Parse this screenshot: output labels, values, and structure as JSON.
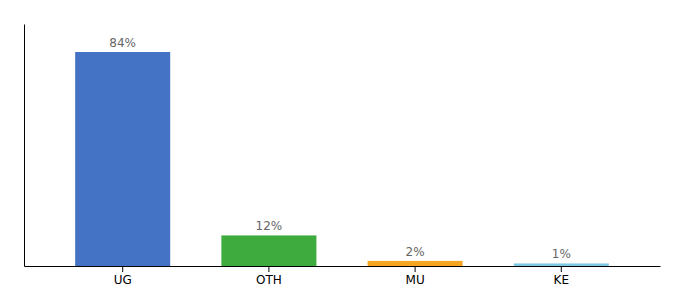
{
  "chart_data": {
    "type": "bar",
    "categories": [
      "UG",
      "OTH",
      "MU",
      "KE"
    ],
    "values": [
      84,
      12,
      2,
      1
    ],
    "value_labels": [
      "84%",
      "12%",
      "2%",
      "1%"
    ],
    "colors": [
      "#4472c4",
      "#3dab3d",
      "#f5a623",
      "#7ec8e3"
    ],
    "ylim": [
      0,
      95
    ],
    "tick_labels": "x",
    "data_labels": true
  }
}
